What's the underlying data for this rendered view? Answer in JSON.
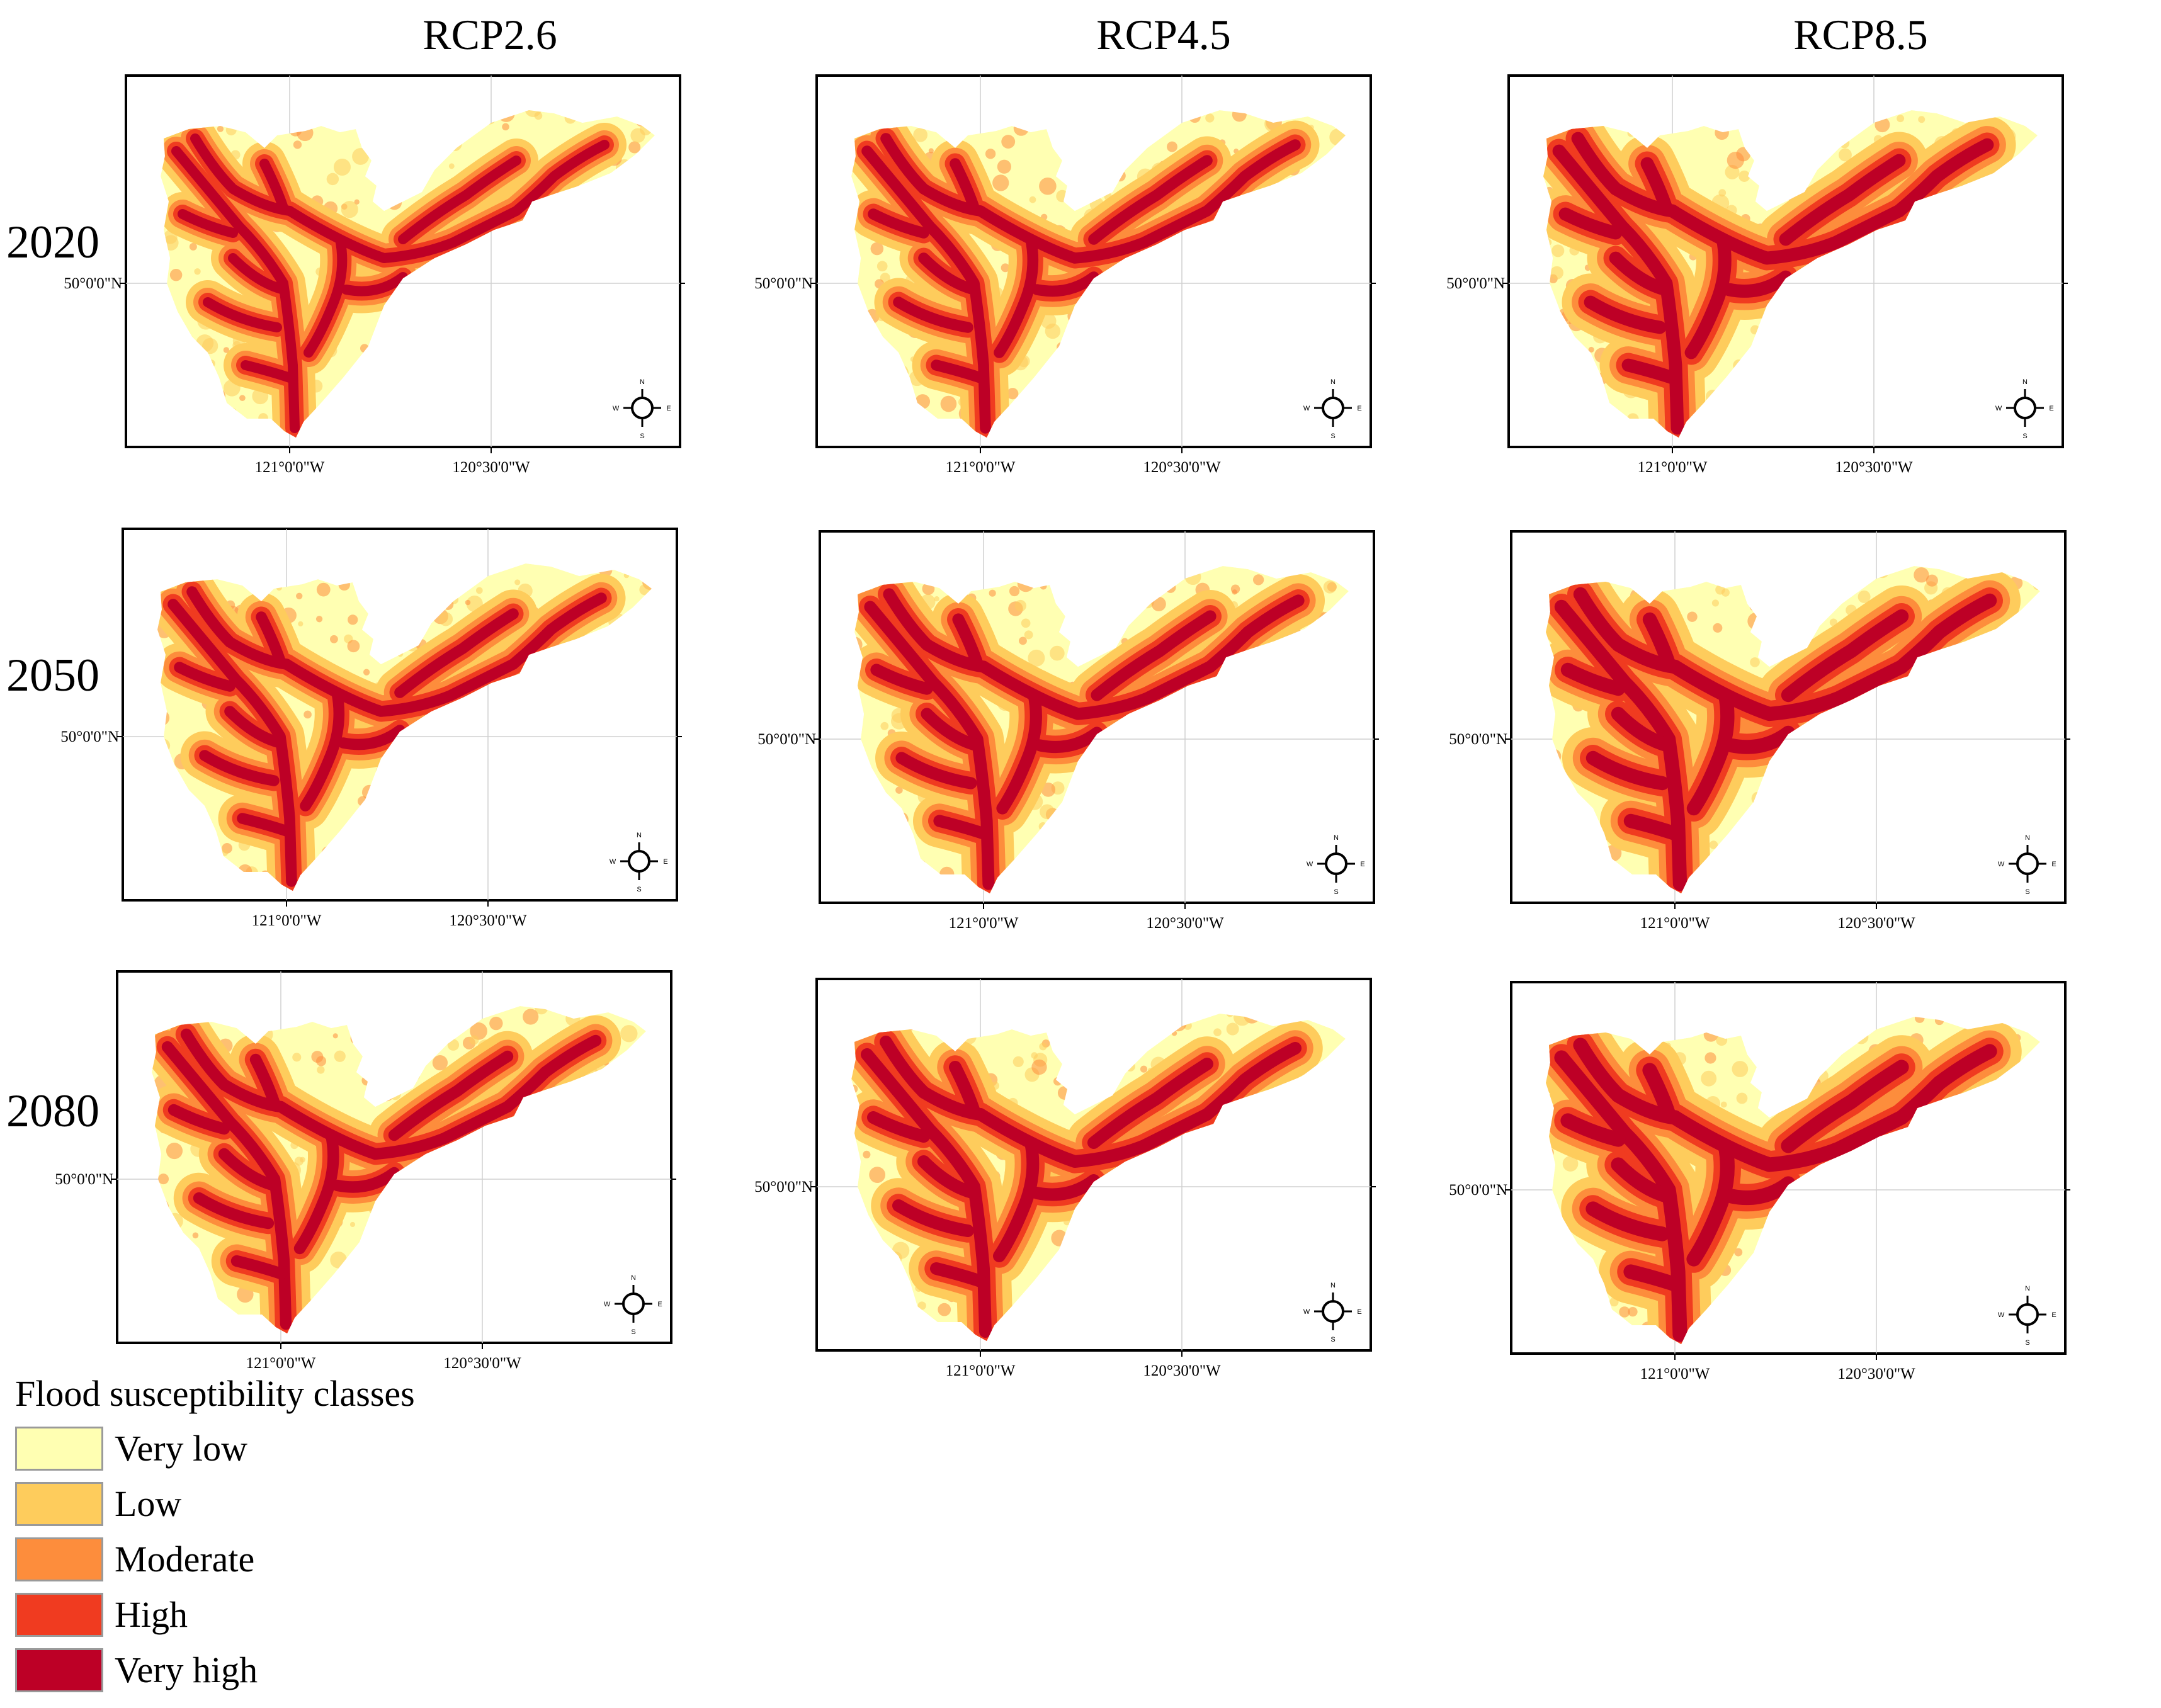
{
  "columns": [
    "RCP2.6",
    "RCP4.5",
    "RCP8.5"
  ],
  "rows": [
    "2020",
    "2050",
    "2080"
  ],
  "axes": {
    "lat_label": "50°0'0\"N",
    "lon_labels": [
      "121°0'0\"W",
      "120°30'0\"W"
    ]
  },
  "compass": {
    "n": "N",
    "s": "S",
    "e": "E",
    "w": "W"
  },
  "legend": {
    "title": "Flood susceptibility classes",
    "classes": [
      {
        "label": "Very low",
        "color": "#ffffb2"
      },
      {
        "label": "Low",
        "color": "#fecc5c"
      },
      {
        "label": "Moderate",
        "color": "#fd8d3c"
      },
      {
        "label": "High",
        "color": "#f03b20"
      },
      {
        "label": "Very high",
        "color": "#bd0026"
      }
    ]
  }
}
